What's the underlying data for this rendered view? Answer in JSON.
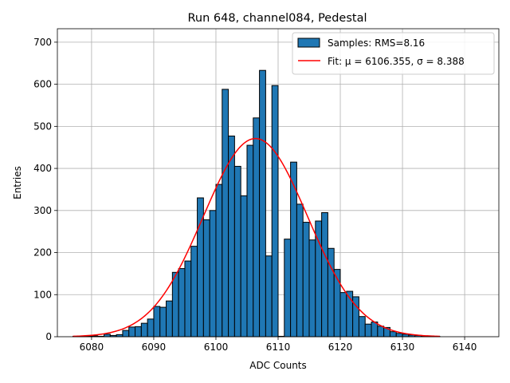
{
  "chart_data": {
    "type": "bar",
    "title": "Run 648, channel084, Pedestal",
    "xlabel": "ADC Counts",
    "ylabel": "Entries",
    "xlim": [
      6074.5,
      6145.5
    ],
    "ylim": [
      0,
      732
    ],
    "xticks": [
      6080,
      6090,
      6100,
      6110,
      6120,
      6130,
      6140
    ],
    "yticks": [
      0,
      100,
      200,
      300,
      400,
      500,
      600,
      700
    ],
    "grid": true,
    "legend_position": "top-right",
    "histogram": {
      "name": "Samples: RMS=8.16",
      "color": "#1f77b4",
      "bin_edges": [
        6077,
        6078,
        6079,
        6080,
        6081,
        6082,
        6083,
        6084,
        6085,
        6086,
        6087,
        6088,
        6089,
        6090,
        6091,
        6092,
        6093,
        6094,
        6095,
        6096,
        6097,
        6098,
        6099,
        6100,
        6101,
        6102,
        6103,
        6104,
        6105,
        6106,
        6107,
        6108,
        6109,
        6110,
        6111,
        6112,
        6113,
        6114,
        6115,
        6116,
        6117,
        6118,
        6119,
        6120,
        6121,
        6122,
        6123,
        6124,
        6125,
        6126,
        6127,
        6128,
        6129,
        6130,
        6131,
        6132,
        6133,
        6134,
        6135,
        6136
      ],
      "counts": [
        1,
        1,
        1,
        2,
        1,
        6,
        3,
        5,
        15,
        23,
        24,
        32,
        42,
        72,
        70,
        85,
        153,
        162,
        180,
        215,
        330,
        278,
        300,
        362,
        588,
        477,
        405,
        335,
        455,
        520,
        633,
        192,
        597,
        1,
        232,
        415,
        315,
        272,
        230,
        275,
        295,
        210,
        160,
        105,
        108,
        95,
        48,
        30,
        35,
        25,
        22,
        12,
        8,
        6,
        4,
        3,
        2,
        2,
        1
      ]
    },
    "fit": {
      "name": "Fit: μ = 6106.355, σ = 8.388",
      "color": "#ff0000",
      "mu": 6106.355,
      "sigma": 8.388,
      "amplitude": 471,
      "x_range": [
        6077,
        6136
      ]
    }
  }
}
